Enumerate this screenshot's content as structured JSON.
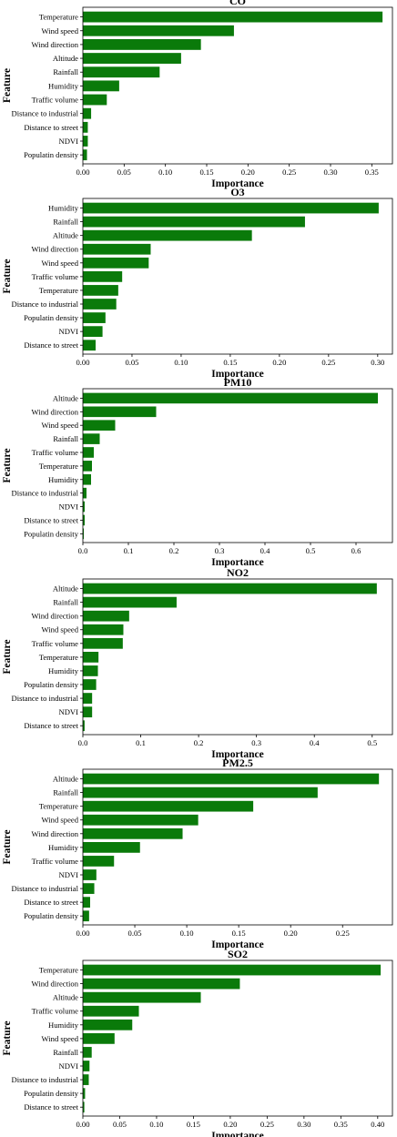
{
  "figure": {
    "bar_color": "#0a7a0a",
    "background": "#ffffff",
    "axis_color": "#000000"
  },
  "chart_data": [
    {
      "type": "bar",
      "orientation": "horizontal",
      "title": "CO",
      "xlabel": "Importance",
      "ylabel": "Feature",
      "categories": [
        "Temperature",
        "Wind speed",
        "Wind direction",
        "Altitude",
        "Rainfall",
        "Humidity",
        "Traffic volume",
        "Distance to industrial",
        "Distance to street",
        "NDVI",
        "Populatin density"
      ],
      "values": [
        0.363,
        0.183,
        0.143,
        0.119,
        0.093,
        0.044,
        0.029,
        0.01,
        0.006,
        0.006,
        0.005
      ],
      "xlim": [
        0,
        0.375
      ],
      "xticks": [
        0.0,
        0.05,
        0.1,
        0.15,
        0.2,
        0.25,
        0.3,
        0.35
      ],
      "xtick_labels": [
        "0.00",
        "0.05",
        "0.10",
        "0.15",
        "0.20",
        "0.25",
        "0.30",
        "0.35"
      ],
      "grid": false
    },
    {
      "type": "bar",
      "orientation": "horizontal",
      "title": "O3",
      "xlabel": "Importance",
      "ylabel": "Feature",
      "categories": [
        "Humidity",
        "Rainfall",
        "Altitude",
        "Wind direction",
        "Wind speed",
        "Traffic volume",
        "Temperature",
        "Distance to industrial",
        "Populatin density",
        "NDVI",
        "Distance to street"
      ],
      "values": [
        0.301,
        0.226,
        0.172,
        0.069,
        0.067,
        0.04,
        0.036,
        0.034,
        0.023,
        0.02,
        0.013
      ],
      "xlim": [
        0,
        0.315
      ],
      "xticks": [
        0.0,
        0.05,
        0.1,
        0.15,
        0.2,
        0.25,
        0.3
      ],
      "xtick_labels": [
        "0.00",
        "0.05",
        "0.10",
        "0.15",
        "0.20",
        "0.25",
        "0.30"
      ],
      "grid": false
    },
    {
      "type": "bar",
      "orientation": "horizontal",
      "title": "PM10",
      "xlabel": "Importance",
      "ylabel": "Feature",
      "categories": [
        "Altitude",
        "Wind direction",
        "Wind speed",
        "Rainfall",
        "Traffic volume",
        "Temperature",
        "Humidity",
        "Distance to industrial",
        "NDVI",
        "Distance to street",
        "Populatin density"
      ],
      "values": [
        0.648,
        0.161,
        0.071,
        0.037,
        0.024,
        0.02,
        0.018,
        0.008,
        0.004,
        0.004,
        0.002
      ],
      "xlim": [
        0,
        0.68
      ],
      "xticks": [
        0.0,
        0.1,
        0.2,
        0.3,
        0.4,
        0.5,
        0.6
      ],
      "xtick_labels": [
        "0.0",
        "0.1",
        "0.2",
        "0.3",
        "0.4",
        "0.5",
        "0.6"
      ],
      "grid": false
    },
    {
      "type": "bar",
      "orientation": "horizontal",
      "title": "NO2",
      "xlabel": "Importance",
      "ylabel": "Feature",
      "categories": [
        "Altitude",
        "Rainfall",
        "Wind direction",
        "Wind speed",
        "Traffic volume",
        "Temperature",
        "Humidity",
        "Populatin density",
        "Distance to industrial",
        "NDVI",
        "Distance to street"
      ],
      "values": [
        0.508,
        0.162,
        0.08,
        0.07,
        0.069,
        0.027,
        0.026,
        0.023,
        0.016,
        0.016,
        0.003
      ],
      "xlim": [
        0,
        0.535
      ],
      "xticks": [
        0.0,
        0.1,
        0.2,
        0.3,
        0.4,
        0.5
      ],
      "xtick_labels": [
        "0.0",
        "0.1",
        "0.2",
        "0.3",
        "0.4",
        "0.5"
      ],
      "grid": false
    },
    {
      "type": "bar",
      "orientation": "horizontal",
      "title": "PM2.5",
      "xlabel": "Importance",
      "ylabel": "Feature",
      "categories": [
        "Altitude",
        "Rainfall",
        "Temperature",
        "Wind speed",
        "Wind direction",
        "Humidity",
        "Traffic volume",
        "NDVI",
        "Distance to industrial",
        "Distance to street",
        "Populatin density"
      ],
      "values": [
        0.285,
        0.226,
        0.164,
        0.111,
        0.096,
        0.055,
        0.03,
        0.013,
        0.011,
        0.007,
        0.006
      ],
      "xlim": [
        0,
        0.298
      ],
      "xticks": [
        0.0,
        0.05,
        0.1,
        0.15,
        0.2,
        0.25
      ],
      "xtick_labels": [
        "0.00",
        "0.05",
        "0.10",
        "0.15",
        "0.20",
        "0.25"
      ],
      "grid": false
    },
    {
      "type": "bar",
      "orientation": "horizontal",
      "title": "SO2",
      "xlabel": "Importance",
      "ylabel": "Feature",
      "categories": [
        "Temperature",
        "Wind direction",
        "Altitude",
        "Traffic volume",
        "Humidity",
        "Wind speed",
        "Rainfall",
        "NDVI",
        "Distance to industrial",
        "Populatin density",
        "Distance to street"
      ],
      "values": [
        0.404,
        0.213,
        0.16,
        0.076,
        0.067,
        0.043,
        0.012,
        0.009,
        0.008,
        0.003,
        0.002
      ],
      "xlim": [
        0,
        0.42
      ],
      "xticks": [
        0.0,
        0.05,
        0.1,
        0.15,
        0.2,
        0.25,
        0.3,
        0.35,
        0.4
      ],
      "xtick_labels": [
        "0.00",
        "0.05",
        "0.10",
        "0.15",
        "0.20",
        "0.25",
        "0.30",
        "0.35",
        "0.40"
      ],
      "grid": false
    }
  ]
}
